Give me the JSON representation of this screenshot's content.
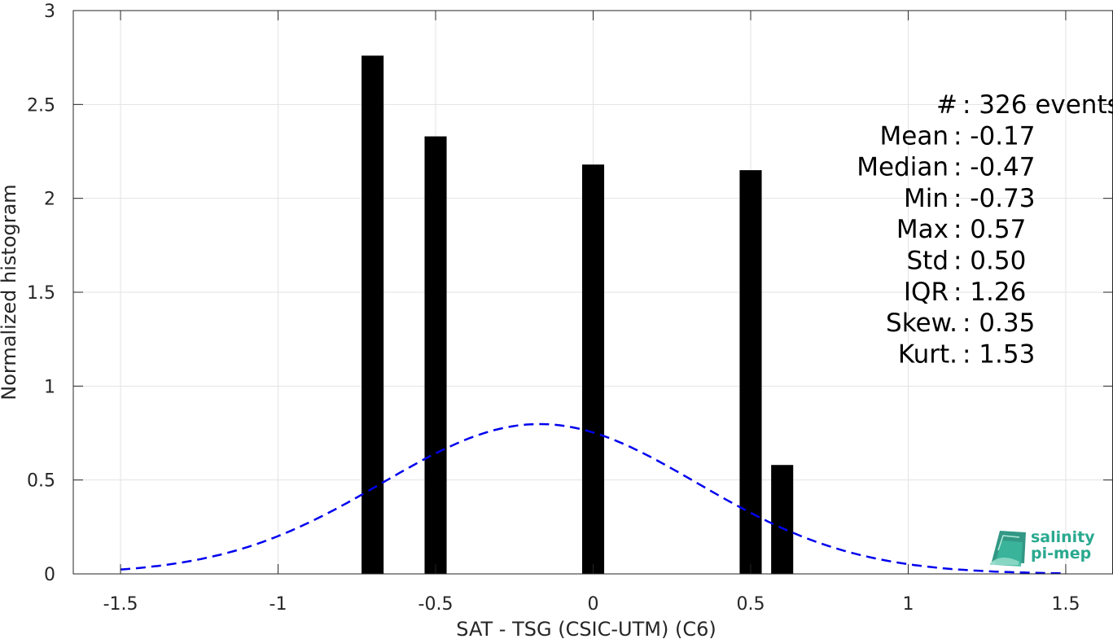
{
  "chart_data": {
    "type": "bar",
    "xlabel": "SAT - TSG (CSIC-UTM) (C6)",
    "ylabel": "Normalized histogram",
    "xlim": [
      -1.65,
      1.65
    ],
    "ylim": [
      0,
      3
    ],
    "xticks": [
      -1.5,
      -1,
      -0.5,
      0,
      0.5,
      1,
      1.5
    ],
    "xtick_labels": [
      "-1.5",
      "-1",
      "-0.5",
      "0",
      "0.5",
      "1",
      "1.5"
    ],
    "yticks": [
      0,
      0.5,
      1,
      1.5,
      2,
      2.5,
      3
    ],
    "ytick_labels": [
      "0",
      "0.5",
      "1",
      "1.5",
      "2",
      "2.5",
      "3"
    ],
    "grid": true,
    "bar_color": "#000000",
    "bars": [
      {
        "x": -0.7,
        "value": 2.76
      },
      {
        "x": -0.5,
        "value": 2.33
      },
      {
        "x": 0.0,
        "value": 2.18
      },
      {
        "x": 0.5,
        "value": 2.15
      },
      {
        "x": 0.6,
        "value": 0.58
      }
    ],
    "bar_width": 0.07,
    "fit_curve": {
      "style": "dashed",
      "color": "#0000ee",
      "mean": -0.17,
      "std": 0.5,
      "x_range": [
        -1.5,
        1.5
      ]
    },
    "stats": [
      {
        "label": "#  ",
        "value": ": 326 events"
      },
      {
        "label": "Mean ",
        "value": ": -0.17"
      },
      {
        "label": "Median ",
        "value": ": -0.47"
      },
      {
        "label": "Min ",
        "value": ": -0.73"
      },
      {
        "label": "Max ",
        "value": ": 0.57"
      },
      {
        "label": "Std ",
        "value": ": 0.50"
      },
      {
        "label": "IQR ",
        "value": ": 1.26"
      },
      {
        "label": "Skew. ",
        "value": ": 0.35"
      },
      {
        "label": "Kurt. ",
        "value": ": 1.53"
      }
    ]
  },
  "logo": {
    "line1": "salinity",
    "line2": "pi-mep",
    "color": "#2aa98f"
  }
}
